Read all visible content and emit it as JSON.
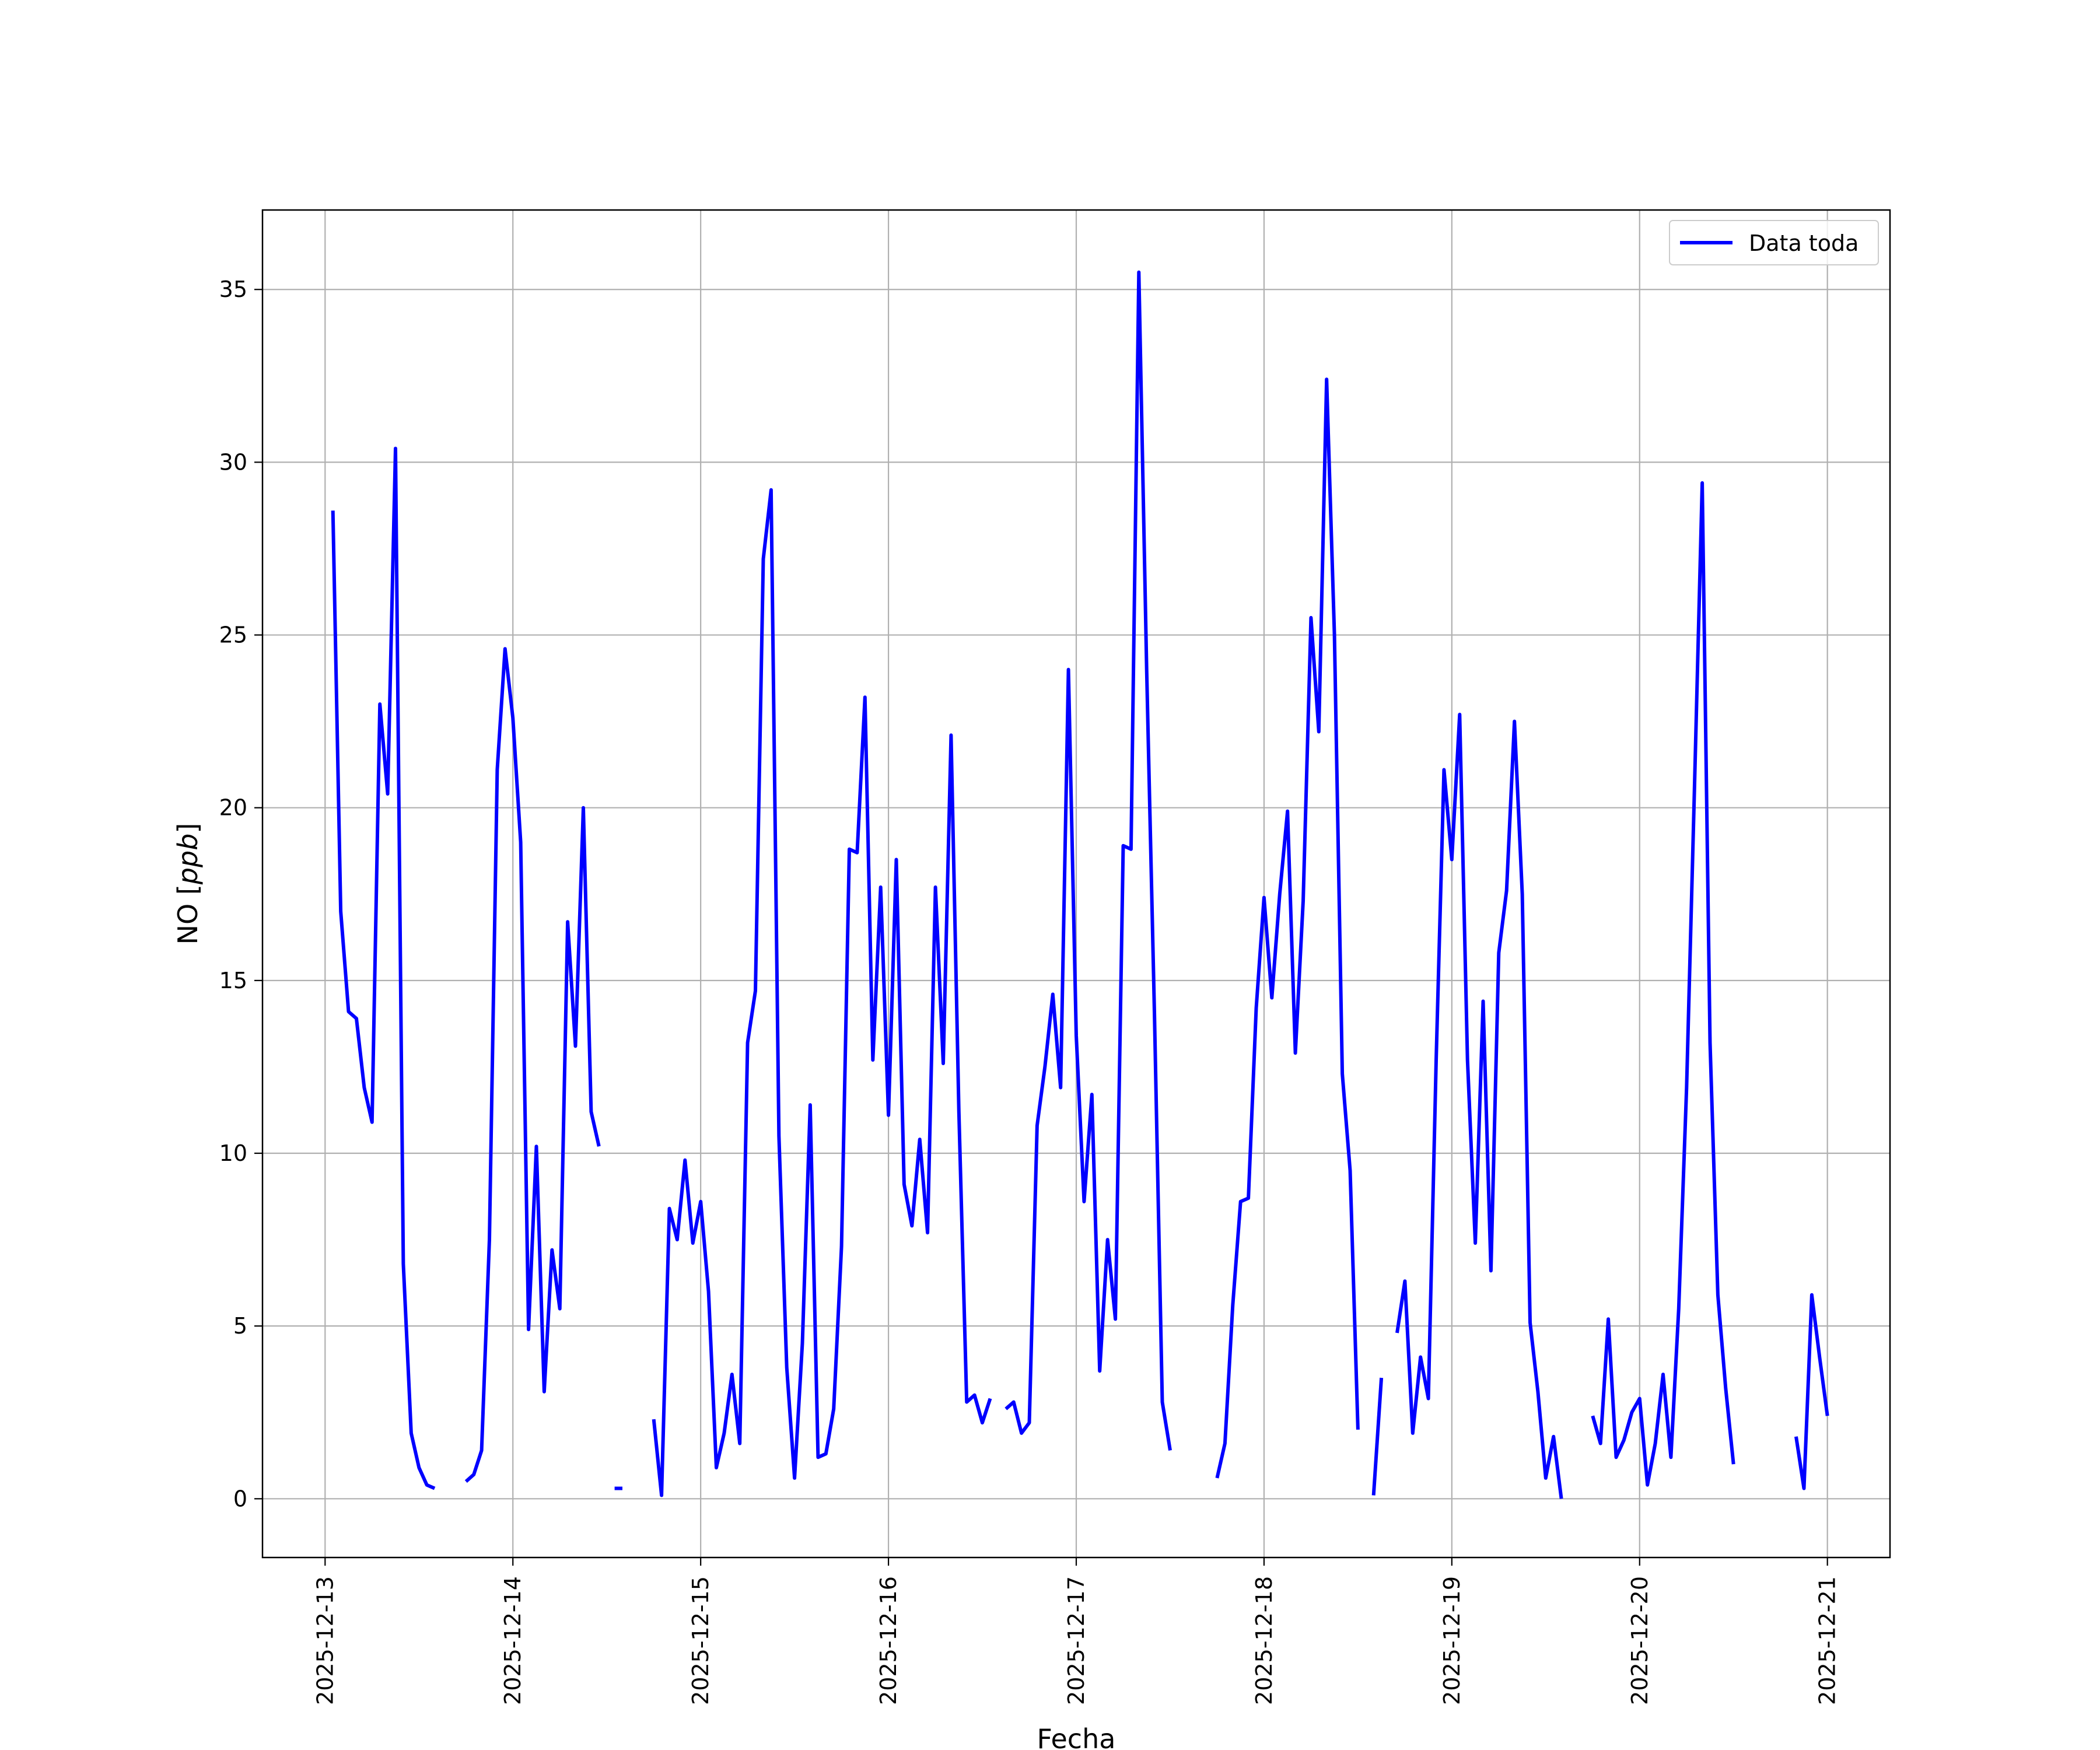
{
  "chart_data": {
    "type": "line",
    "title": "",
    "xlabel": "Fecha",
    "ylabel_prefix": "NO [",
    "ylabel_unit": "ppb",
    "ylabel_suffix": "]",
    "xlim": [
      "2025-12-12 16:00",
      "2025-12-21 08:00"
    ],
    "ylim": [
      -1.7,
      37.3
    ],
    "xticks": [
      "2025-12-13",
      "2025-12-14",
      "2025-12-15",
      "2025-12-16",
      "2025-12-17",
      "2025-12-18",
      "2025-12-19",
      "2025-12-20",
      "2025-12-21"
    ],
    "yticks": [
      0,
      5,
      10,
      15,
      20,
      25,
      30,
      35
    ],
    "grid": true,
    "legend_position": "top-right",
    "colors": {
      "line": "#0000ff",
      "grid": "#b0b0b0",
      "axes": "#000000"
    },
    "series": [
      {
        "name": "Data toda",
        "x": [
          "2025-12-13 01:00",
          "2025-12-13 02:00",
          "2025-12-13 03:00",
          "2025-12-13 04:00",
          "2025-12-13 05:00",
          "2025-12-13 06:00",
          "2025-12-13 07:00",
          "2025-12-13 08:00",
          "2025-12-13 09:00",
          "2025-12-13 10:00",
          "2025-12-13 11:00",
          "2025-12-13 12:00",
          "2025-12-13 13:00",
          "2025-12-13 14:00",
          null,
          "2025-12-13 18:00",
          "2025-12-13 19:00",
          "2025-12-13 20:00",
          "2025-12-13 21:00",
          "2025-12-13 22:00",
          "2025-12-13 23:00",
          "2025-12-14 00:00",
          "2025-12-14 01:00",
          "2025-12-14 02:00",
          "2025-12-14 03:00",
          "2025-12-14 04:00",
          "2025-12-14 05:00",
          "2025-12-14 06:00",
          "2025-12-14 07:00",
          "2025-12-14 08:00",
          "2025-12-14 09:00",
          "2025-12-14 10:00",
          "2025-12-14 11:00",
          null,
          "2025-12-14 13:00",
          "2025-12-14 14:00",
          null,
          "2025-12-14 18:00",
          "2025-12-14 19:00",
          "2025-12-14 20:00",
          "2025-12-14 21:00",
          "2025-12-14 22:00",
          "2025-12-14 23:00",
          "2025-12-15 00:00",
          "2025-12-15 01:00",
          "2025-12-15 02:00",
          "2025-12-15 03:00",
          "2025-12-15 04:00",
          "2025-12-15 05:00",
          "2025-12-15 06:00",
          "2025-12-15 07:00",
          "2025-12-15 08:00",
          "2025-12-15 09:00",
          "2025-12-15 10:00",
          "2025-12-15 11:00",
          "2025-12-15 12:00",
          "2025-12-15 13:00",
          "2025-12-15 14:00",
          "2025-12-15 15:00",
          "2025-12-15 16:00",
          "2025-12-15 17:00",
          "2025-12-15 18:00",
          "2025-12-15 19:00",
          "2025-12-15 20:00",
          "2025-12-15 21:00",
          "2025-12-15 22:00",
          "2025-12-15 23:00",
          "2025-12-16 00:00",
          "2025-12-16 01:00",
          "2025-12-16 02:00",
          "2025-12-16 03:00",
          "2025-12-16 04:00",
          "2025-12-16 05:00",
          "2025-12-16 06:00",
          "2025-12-16 07:00",
          "2025-12-16 08:00",
          "2025-12-16 09:00",
          "2025-12-16 10:00",
          "2025-12-16 11:00",
          "2025-12-16 12:00",
          "2025-12-16 13:00",
          null,
          "2025-12-16 15:00",
          "2025-12-16 16:00",
          "2025-12-16 17:00",
          "2025-12-16 18:00",
          "2025-12-16 19:00",
          "2025-12-16 20:00",
          "2025-12-16 21:00",
          "2025-12-16 22:00",
          "2025-12-16 23:00",
          "2025-12-17 00:00",
          "2025-12-17 01:00",
          "2025-12-17 02:00",
          "2025-12-17 03:00",
          "2025-12-17 04:00",
          "2025-12-17 05:00",
          "2025-12-17 06:00",
          "2025-12-17 07:00",
          "2025-12-17 08:00",
          "2025-12-17 09:00",
          "2025-12-17 10:00",
          "2025-12-17 11:00",
          "2025-12-17 12:00",
          null,
          "2025-12-17 18:00",
          "2025-12-17 19:00",
          "2025-12-17 20:00",
          "2025-12-17 21:00",
          "2025-12-17 22:00",
          "2025-12-17 23:00",
          "2025-12-18 00:00",
          "2025-12-18 01:00",
          "2025-12-18 02:00",
          "2025-12-18 03:00",
          "2025-12-18 04:00",
          "2025-12-18 05:00",
          "2025-12-18 06:00",
          "2025-12-18 07:00",
          "2025-12-18 08:00",
          "2025-12-18 09:00",
          "2025-12-18 10:00",
          "2025-12-18 11:00",
          "2025-12-18 12:00",
          null,
          "2025-12-18 14:00",
          "2025-12-18 15:00",
          null,
          "2025-12-18 17:00",
          "2025-12-18 18:00",
          "2025-12-18 19:00",
          "2025-12-18 20:00",
          "2025-12-18 21:00",
          "2025-12-18 22:00",
          "2025-12-18 23:00",
          "2025-12-19 00:00",
          "2025-12-19 01:00",
          "2025-12-19 02:00",
          "2025-12-19 03:00",
          "2025-12-19 04:00",
          "2025-12-19 05:00",
          "2025-12-19 06:00",
          "2025-12-19 07:00",
          "2025-12-19 08:00",
          "2025-12-19 09:00",
          "2025-12-19 10:00",
          "2025-12-19 11:00",
          "2025-12-19 12:00",
          "2025-12-19 13:00",
          "2025-12-19 14:00",
          null,
          "2025-12-19 18:00",
          "2025-12-19 19:00",
          "2025-12-19 20:00",
          "2025-12-19 21:00",
          "2025-12-19 22:00",
          "2025-12-19 23:00",
          "2025-12-20 00:00",
          "2025-12-20 01:00",
          "2025-12-20 02:00",
          "2025-12-20 03:00",
          "2025-12-20 04:00",
          "2025-12-20 05:00",
          "2025-12-20 06:00",
          "2025-12-20 07:00",
          "2025-12-20 08:00",
          "2025-12-20 09:00",
          "2025-12-20 10:00",
          "2025-12-20 11:00",
          "2025-12-20 12:00",
          null,
          "2025-12-20 20:00",
          "2025-12-20 21:00",
          "2025-12-20 22:00",
          "2025-12-20 23:00",
          "2025-12-21 00:00"
        ],
        "y": [
          28.6,
          17.0,
          14.1,
          13.9,
          11.9,
          10.9,
          23.0,
          20.4,
          30.4,
          6.8,
          1.9,
          0.9,
          0.4,
          0.3,
          null,
          0.5,
          0.7,
          1.4,
          7.5,
          21.1,
          24.6,
          22.6,
          19.0,
          4.9,
          10.2,
          3.1,
          7.2,
          5.5,
          16.7,
          13.1,
          20.0,
          11.2,
          10.2,
          null,
          0.3,
          0.3,
          null,
          2.3,
          0.1,
          8.4,
          7.5,
          9.8,
          7.4,
          8.6,
          6.0,
          0.9,
          1.9,
          3.6,
          1.6,
          13.2,
          14.7,
          27.2,
          29.2,
          10.5,
          3.8,
          0.6,
          4.5,
          11.4,
          1.2,
          1.3,
          2.6,
          7.3,
          18.8,
          18.7,
          23.2,
          12.7,
          17.7,
          11.1,
          18.5,
          9.1,
          7.9,
          10.4,
          7.7,
          17.7,
          12.6,
          22.1,
          11.2,
          2.8,
          3.0,
          2.2,
          2.9,
          null,
          2.6,
          2.8,
          1.9,
          2.2,
          10.8,
          12.5,
          14.6,
          11.9,
          24.0,
          13.4,
          8.6,
          11.7,
          3.7,
          7.5,
          5.2,
          18.9,
          18.8,
          35.5,
          24.0,
          14.0,
          2.8,
          1.4,
          null,
          0.6,
          1.6,
          5.6,
          8.6,
          8.7,
          14.2,
          17.4,
          14.5,
          17.5,
          19.9,
          12.9,
          17.3,
          25.5,
          22.2,
          32.4,
          25.0,
          12.3,
          9.5,
          2.0,
          null,
          0.1,
          3.5,
          null,
          4.8,
          6.3,
          1.9,
          4.1,
          2.9,
          12.7,
          21.1,
          18.5,
          22.7,
          12.7,
          7.4,
          14.4,
          6.6,
          15.8,
          17.6,
          22.5,
          17.5,
          5.1,
          3.1,
          0.6,
          1.8,
          0.0,
          null,
          2.4,
          1.6,
          5.2,
          1.2,
          1.7,
          2.5,
          2.9,
          0.4,
          1.6,
          3.6,
          1.2,
          5.5,
          11.9,
          20.5,
          29.4,
          13.2,
          5.9,
          3.2,
          1.0,
          null,
          1.8,
          0.3,
          5.9,
          4.1,
          2.4
        ]
      }
    ]
  }
}
